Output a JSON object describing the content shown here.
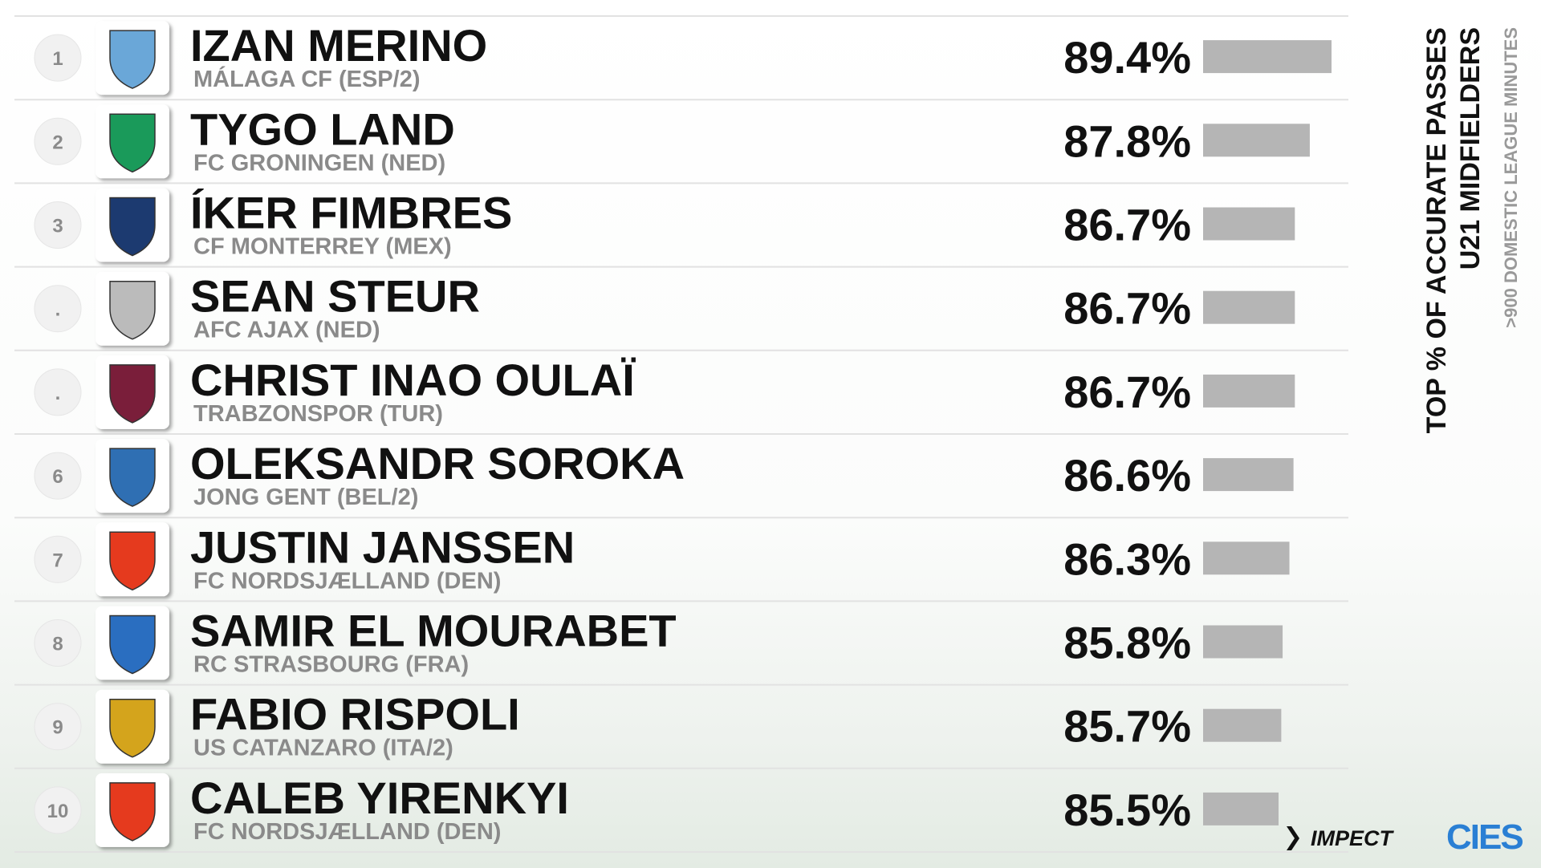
{
  "chart_data": {
    "type": "bar",
    "title": "TOP % OF ACCURATE PASSES",
    "subtitle": "U21 MIDFIELDERS",
    "note": ">900 DOMESTIC LEAGUE MINUTES",
    "ranks": [
      "1",
      "2",
      "3",
      ".",
      ".",
      "6",
      "7",
      "8",
      "9",
      "10"
    ],
    "categories": [
      "IZAN MERINO",
      "TYGO LAND",
      "ÍKER FIMBRES",
      "SEAN STEUR",
      "CHRIST INAO OULAÏ",
      "OLEKSANDR SOROKA",
      "JUSTIN JANSSEN",
      "SAMIR EL MOURABET",
      "FABIO RISPOLI",
      "CALEB YIRENKYI"
    ],
    "clubs": [
      "MÁLAGA CF (ESP/2)",
      "FC GRONINGEN (NED)",
      "CF MONTERREY (MEX)",
      "AFC AJAX (NED)",
      "TRABZONSPOR (TUR)",
      "JONG GENT (BEL/2)",
      "FC NORDSJÆLLAND (DEN)",
      "RC STRASBOURG (FRA)",
      "US CATANZARO (ITA/2)",
      "FC NORDSJÆLLAND (DEN)"
    ],
    "values": [
      89.4,
      87.8,
      86.7,
      86.7,
      86.7,
      86.6,
      86.3,
      85.8,
      85.7,
      85.5
    ],
    "value_labels": [
      "89.4%",
      "87.8%",
      "86.7%",
      "86.7%",
      "86.7%",
      "86.6%",
      "86.3%",
      "85.8%",
      "85.7%",
      "85.5%"
    ],
    "color": "#b5b5b5",
    "logos": [
      "IMPECT",
      "CIES"
    ]
  }
}
